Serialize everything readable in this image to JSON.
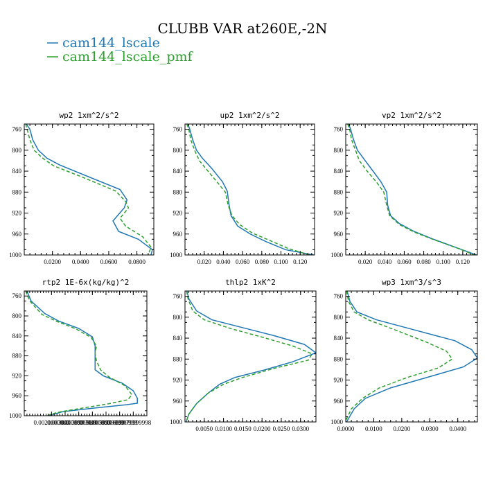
{
  "figure": {
    "title": "CLUBB VAR at260E,-2N",
    "legend": [
      {
        "label": "cam144_lscale",
        "color": "#1f77b4",
        "dash": "solid"
      },
      {
        "label": "cam144_lscale_pmf",
        "color": "#2ca02c",
        "dash": "dashed"
      }
    ]
  },
  "chart_data": [
    {
      "type": "line",
      "title": "wp2  1xm^2/s^2",
      "xlim": [
        0.0,
        0.092
      ],
      "ylim": [
        1000,
        750
      ],
      "y_reversed": true,
      "xticks": [
        {
          "v": 0.02,
          "label": "0.0200"
        },
        {
          "v": 0.04,
          "label": "0.0400"
        },
        {
          "v": 0.06,
          "label": "0.0600"
        },
        {
          "v": 0.08,
          "label": "0.0800"
        }
      ],
      "yticks": [
        760,
        800,
        840,
        880,
        920,
        960,
        1000
      ],
      "series": [
        {
          "name": "cam144_lscale",
          "points": [
            [
              0.0015,
              750
            ],
            [
              0.004,
              760
            ],
            [
              0.006,
              780
            ],
            [
              0.01,
              800
            ],
            [
              0.016,
              815
            ],
            [
              0.025,
              828
            ],
            [
              0.045,
              850
            ],
            [
              0.068,
              875
            ],
            [
              0.073,
              895
            ],
            [
              0.071,
              910
            ],
            [
              0.063,
              935
            ],
            [
              0.067,
              955
            ],
            [
              0.081,
              970
            ],
            [
              0.091,
              990
            ],
            [
              0.09,
              1000
            ]
          ]
        },
        {
          "name": "cam144_lscale_pmf",
          "points": [
            [
              0.001,
              750
            ],
            [
              0.002,
              760
            ],
            [
              0.004,
              780
            ],
            [
              0.007,
              800
            ],
            [
              0.013,
              815
            ],
            [
              0.021,
              830
            ],
            [
              0.04,
              850
            ],
            [
              0.065,
              878
            ],
            [
              0.072,
              898
            ],
            [
              0.074,
              910
            ],
            [
              0.068,
              930
            ],
            [
              0.072,
              945
            ],
            [
              0.084,
              965
            ],
            [
              0.09,
              985
            ],
            [
              0.088,
              1000
            ]
          ]
        }
      ]
    },
    {
      "type": "line",
      "title": "up2  1xm^2/s^2",
      "xlim": [
        0.0,
        0.135
      ],
      "ylim": [
        1000,
        750
      ],
      "y_reversed": true,
      "xticks": [
        {
          "v": 0.02,
          "label": "0.020"
        },
        {
          "v": 0.04,
          "label": "0.040"
        },
        {
          "v": 0.06,
          "label": "0.060"
        },
        {
          "v": 0.08,
          "label": "0.080"
        },
        {
          "v": 0.1,
          "label": "0.100"
        },
        {
          "v": 0.12,
          "label": "0.120"
        }
      ],
      "yticks": [
        760,
        800,
        840,
        880,
        920,
        960,
        1000
      ],
      "series": [
        {
          "name": "cam144_lscale",
          "points": [
            [
              0.003,
              750
            ],
            [
              0.005,
              760
            ],
            [
              0.008,
              780
            ],
            [
              0.012,
              800
            ],
            [
              0.018,
              815
            ],
            [
              0.028,
              835
            ],
            [
              0.039,
              860
            ],
            [
              0.044,
              878
            ],
            [
              0.046,
              905
            ],
            [
              0.048,
              925
            ],
            [
              0.055,
              945
            ],
            [
              0.068,
              960
            ],
            [
              0.085,
              975
            ],
            [
              0.105,
              990
            ],
            [
              0.134,
              1000
            ]
          ]
        },
        {
          "name": "cam144_lscale_pmf",
          "points": [
            [
              0.002,
              750
            ],
            [
              0.004,
              760
            ],
            [
              0.006,
              780
            ],
            [
              0.01,
              800
            ],
            [
              0.015,
              820
            ],
            [
              0.024,
              840
            ],
            [
              0.034,
              862
            ],
            [
              0.042,
              880
            ],
            [
              0.045,
              905
            ],
            [
              0.049,
              925
            ],
            [
              0.057,
              942
            ],
            [
              0.07,
              958
            ],
            [
              0.088,
              972
            ],
            [
              0.108,
              988
            ],
            [
              0.13,
              1000
            ]
          ]
        }
      ]
    },
    {
      "type": "line",
      "title": "vp2  1xm^2/s^2",
      "xlim": [
        0.0,
        0.135
      ],
      "ylim": [
        1000,
        750
      ],
      "y_reversed": true,
      "xticks": [
        {
          "v": 0.02,
          "label": "0.020"
        },
        {
          "v": 0.04,
          "label": "0.040"
        },
        {
          "v": 0.06,
          "label": "0.060"
        },
        {
          "v": 0.08,
          "label": "0.080"
        },
        {
          "v": 0.1,
          "label": "0.100"
        },
        {
          "v": 0.12,
          "label": "0.120"
        }
      ],
      "yticks": [
        760,
        800,
        840,
        880,
        920,
        960,
        1000
      ],
      "series": [
        {
          "name": "cam144_lscale",
          "points": [
            [
              0.003,
              750
            ],
            [
              0.005,
              760
            ],
            [
              0.008,
              780
            ],
            [
              0.012,
              800
            ],
            [
              0.018,
              815
            ],
            [
              0.026,
              835
            ],
            [
              0.036,
              860
            ],
            [
              0.042,
              880
            ],
            [
              0.043,
              905
            ],
            [
              0.046,
              925
            ],
            [
              0.055,
              940
            ],
            [
              0.07,
              955
            ],
            [
              0.09,
              970
            ],
            [
              0.115,
              987
            ],
            [
              0.134,
              1000
            ]
          ]
        },
        {
          "name": "cam144_lscale_pmf",
          "points": [
            [
              0.002,
              750
            ],
            [
              0.004,
              760
            ],
            [
              0.006,
              780
            ],
            [
              0.01,
              800
            ],
            [
              0.014,
              820
            ],
            [
              0.022,
              840
            ],
            [
              0.032,
              862
            ],
            [
              0.039,
              880
            ],
            [
              0.042,
              905
            ],
            [
              0.045,
              925
            ],
            [
              0.055,
              942
            ],
            [
              0.071,
              957
            ],
            [
              0.092,
              972
            ],
            [
              0.116,
              988
            ],
            [
              0.132,
              1000
            ]
          ]
        }
      ]
    },
    {
      "type": "line",
      "title": "rtp2  1E-6x(kg/kg)^2",
      "xlim": [
        0.0,
        0.009
      ],
      "ylim": [
        1000,
        750
      ],
      "y_reversed": true,
      "xticks": [
        {
          "v": 0.002,
          "label": "0.0020000000"
        },
        {
          "v": 0.003,
          "label": "0.0030000000"
        },
        {
          "v": 0.004,
          "label": "0.0039999999"
        },
        {
          "v": 0.005,
          "label": "0.0050000000"
        },
        {
          "v": 0.006,
          "label": "0.0059999999"
        },
        {
          "v": 0.007,
          "label": "0.0069999999"
        },
        {
          "v": 0.008,
          "label": "0.0079999998"
        }
      ],
      "yticks": [
        760,
        800,
        840,
        880,
        920,
        960,
        1000
      ],
      "series": [
        {
          "name": "cam144_lscale",
          "points": [
            [
              0.0002,
              750
            ],
            [
              0.0005,
              770
            ],
            [
              0.0011,
              785
            ],
            [
              0.0015,
              795
            ],
            [
              0.0025,
              810
            ],
            [
              0.004,
              825
            ],
            [
              0.005,
              842
            ],
            [
              0.0052,
              860
            ],
            [
              0.0052,
              875
            ],
            [
              0.0052,
              890
            ],
            [
              0.0052,
              908
            ],
            [
              0.0058,
              920
            ],
            [
              0.0072,
              935
            ],
            [
              0.008,
              950
            ],
            [
              0.0083,
              965
            ],
            [
              0.0083,
              975
            ],
            [
              0.0075,
              978
            ],
            [
              0.005,
              985
            ],
            [
              0.0028,
              992
            ],
            [
              0.0018,
              1000
            ]
          ]
        },
        {
          "name": "cam144_lscale_pmf",
          "points": [
            [
              0.0001,
              750
            ],
            [
              0.0004,
              770
            ],
            [
              0.0009,
              785
            ],
            [
              0.0013,
              797
            ],
            [
              0.0023,
              810
            ],
            [
              0.0038,
              826
            ],
            [
              0.0049,
              843
            ],
            [
              0.0053,
              860
            ],
            [
              0.0052,
              875
            ],
            [
              0.0053,
              890
            ],
            [
              0.0056,
              908
            ],
            [
              0.0062,
              922
            ],
            [
              0.0074,
              940
            ],
            [
              0.0079,
              958
            ],
            [
              0.0076,
              968
            ],
            [
              0.0062,
              976
            ],
            [
              0.0042,
              985
            ],
            [
              0.0025,
              993
            ],
            [
              0.0016,
              1000
            ]
          ]
        }
      ]
    },
    {
      "type": "line",
      "title": "thlp2  1xK^2",
      "xlim": [
        0.0,
        0.034
      ],
      "ylim": [
        1000,
        750
      ],
      "y_reversed": true,
      "xticks": [
        {
          "v": 0.005,
          "label": "0.0050"
        },
        {
          "v": 0.01,
          "label": "0.0100"
        },
        {
          "v": 0.015,
          "label": "0.0150"
        },
        {
          "v": 0.02,
          "label": "0.0200"
        },
        {
          "v": 0.025,
          "label": "0.0250"
        },
        {
          "v": 0.03,
          "label": "0.0300"
        }
      ],
      "yticks": [
        760,
        800,
        840,
        880,
        920,
        960,
        1000
      ],
      "series": [
        {
          "name": "cam144_lscale",
          "points": [
            [
              0.0005,
              750
            ],
            [
              0.001,
              765
            ],
            [
              0.003,
              788
            ],
            [
              0.007,
              805
            ],
            [
              0.015,
              820
            ],
            [
              0.023,
              835
            ],
            [
              0.031,
              852
            ],
            [
              0.034,
              868
            ],
            [
              0.028,
              885
            ],
            [
              0.021,
              900
            ],
            [
              0.013,
              915
            ],
            [
              0.009,
              928
            ],
            [
              0.006,
              945
            ],
            [
              0.003,
              965
            ],
            [
              0.001,
              985
            ],
            [
              0.0003,
              1000
            ]
          ]
        },
        {
          "name": "cam144_lscale_pmf",
          "points": [
            [
              0.0004,
              750
            ],
            [
              0.0008,
              765
            ],
            [
              0.002,
              788
            ],
            [
              0.005,
              805
            ],
            [
              0.012,
              822
            ],
            [
              0.02,
              838
            ],
            [
              0.028,
              855
            ],
            [
              0.033,
              870
            ],
            [
              0.032,
              882
            ],
            [
              0.023,
              898
            ],
            [
              0.015,
              915
            ],
            [
              0.01,
              928
            ],
            [
              0.006,
              945
            ],
            [
              0.003,
              965
            ],
            [
              0.001,
              985
            ],
            [
              0.0003,
              1000
            ]
          ]
        }
      ]
    },
    {
      "type": "line",
      "title": "wp3  1xm^3/s^3",
      "xlim": [
        0.0,
        0.047
      ],
      "ylim": [
        1000,
        750
      ],
      "y_reversed": true,
      "xticks": [
        {
          "v": 0.0,
          "label": "0.0000"
        },
        {
          "v": 0.01,
          "label": "0.0100"
        },
        {
          "v": 0.02,
          "label": "0.0200"
        },
        {
          "v": 0.03,
          "label": "0.0300"
        },
        {
          "v": 0.04,
          "label": "0.0400"
        }
      ],
      "yticks": [
        760,
        800,
        840,
        880,
        920,
        960,
        1000
      ],
      "series": [
        {
          "name": "cam144_lscale",
          "points": [
            [
              0.0005,
              750
            ],
            [
              0.0015,
              770
            ],
            [
              0.004,
              790
            ],
            [
              0.011,
              805
            ],
            [
              0.025,
              825
            ],
            [
              0.039,
              845
            ],
            [
              0.045,
              862
            ],
            [
              0.047,
              878
            ],
            [
              0.042,
              895
            ],
            [
              0.029,
              915
            ],
            [
              0.016,
              935
            ],
            [
              0.007,
              955
            ],
            [
              0.003,
              975
            ],
            [
              0.0003,
              1000
            ]
          ]
        },
        {
          "name": "cam144_lscale_pmf",
          "points": [
            [
              0.0003,
              750
            ],
            [
              0.001,
              770
            ],
            [
              0.003,
              790
            ],
            [
              0.008,
              805
            ],
            [
              0.018,
              825
            ],
            [
              0.029,
              848
            ],
            [
              0.036,
              865
            ],
            [
              0.038,
              880
            ],
            [
              0.033,
              897
            ],
            [
              0.022,
              915
            ],
            [
              0.012,
              935
            ],
            [
              0.006,
              955
            ],
            [
              0.002,
              975
            ],
            [
              -0.0002,
              1000
            ]
          ]
        }
      ]
    }
  ]
}
